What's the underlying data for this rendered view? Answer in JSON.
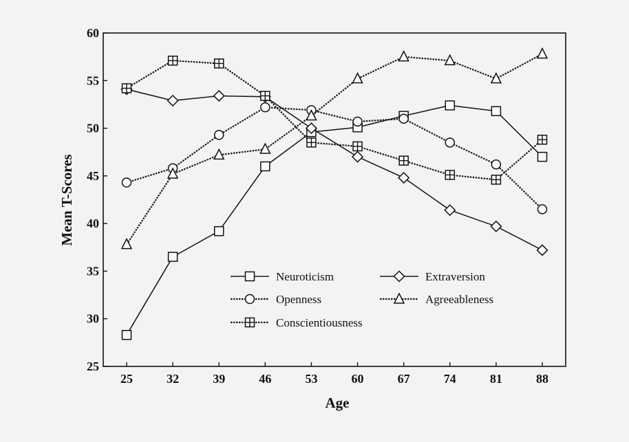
{
  "chart_data": {
    "type": "line",
    "title": "",
    "xlabel": "Age",
    "ylabel": "Mean T-Scores",
    "x": [
      25,
      32,
      39,
      46,
      53,
      60,
      67,
      74,
      81,
      88
    ],
    "x_tick_labels": [
      "25",
      "32",
      "39",
      "46",
      "53",
      "60",
      "67",
      "74",
      "81",
      "88"
    ],
    "ylim": [
      25,
      60
    ],
    "y_ticks": [
      25,
      30,
      35,
      40,
      45,
      50,
      55,
      60
    ],
    "y_tick_labels": [
      "25",
      "30",
      "35",
      "40",
      "45",
      "50",
      "55",
      "60"
    ],
    "grid": false,
    "legend_position": "inside-bottom-center",
    "series": [
      {
        "name": "Neuroticism",
        "marker": "square",
        "style": "solid",
        "values": [
          28.3,
          36.5,
          39.2,
          46.0,
          49.6,
          50.1,
          51.3,
          52.4,
          51.8,
          47.0
        ]
      },
      {
        "name": "Extraversion",
        "marker": "diamond",
        "style": "solid",
        "values": [
          54.1,
          52.9,
          53.4,
          53.3,
          50.0,
          47.0,
          44.8,
          41.4,
          39.7,
          37.2
        ]
      },
      {
        "name": "Openness",
        "marker": "circle",
        "style": "dotted",
        "values": [
          44.3,
          45.8,
          49.3,
          52.2,
          51.9,
          50.7,
          51.0,
          48.5,
          46.2,
          41.5
        ]
      },
      {
        "name": "Agreeableness",
        "marker": "triangle",
        "style": "dotted",
        "values": [
          37.8,
          45.2,
          47.2,
          47.8,
          51.3,
          55.2,
          57.5,
          57.1,
          55.2,
          57.8
        ]
      },
      {
        "name": "Conscientiousness",
        "marker": "square-plus",
        "style": "dotted",
        "values": [
          54.2,
          57.1,
          56.8,
          53.4,
          48.5,
          48.1,
          46.6,
          45.1,
          44.6,
          48.8
        ]
      }
    ]
  }
}
